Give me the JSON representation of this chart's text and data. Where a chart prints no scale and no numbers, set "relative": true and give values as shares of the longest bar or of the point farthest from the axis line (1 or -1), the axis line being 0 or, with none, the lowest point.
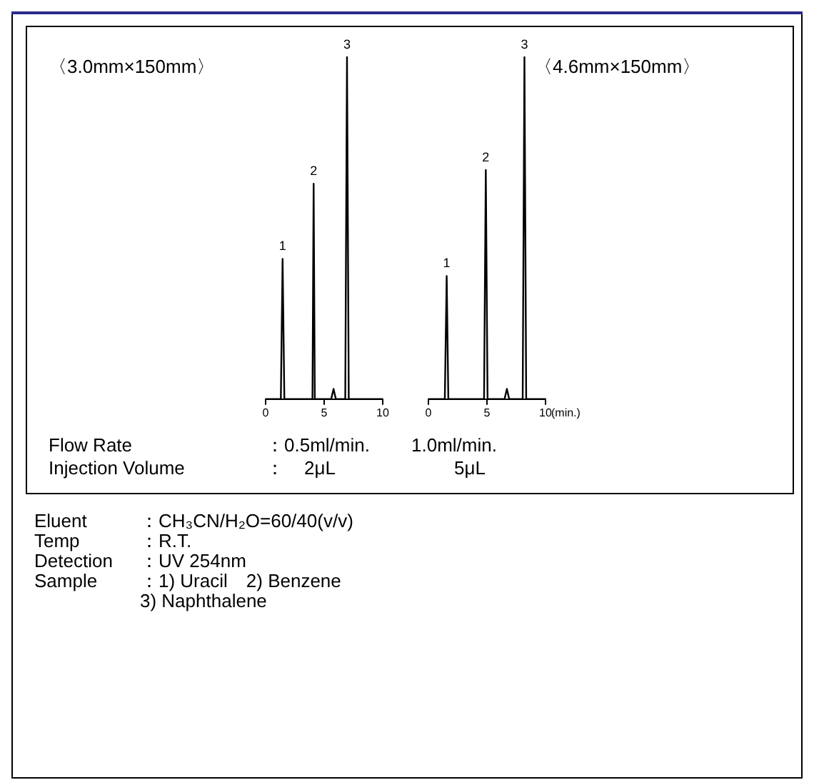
{
  "chart_data": [
    {
      "type": "line",
      "title": "〈3.0mm×150mm〉",
      "relative": true,
      "x": [
        0,
        1.3,
        1.45,
        1.6,
        4.0,
        4.1,
        4.2,
        5.6,
        5.8,
        6.0,
        6.8,
        6.95,
        7.1,
        10
      ],
      "xlim": [
        0,
        10
      ],
      "xticks": [
        0,
        5,
        10
      ],
      "series": [
        {
          "color": "#000000",
          "values": [
            0,
            0,
            0.41,
            0,
            0,
            0.63,
            0,
            0,
            0.03,
            0,
            0,
            1,
            0,
            0
          ]
        }
      ],
      "annotations": [
        {
          "text": "1",
          "x": 1.45,
          "y": 0.41
        },
        {
          "text": "2",
          "x": 4.1,
          "y": 0.63
        },
        {
          "text": "3",
          "x": 6.95,
          "y": 1
        }
      ]
    },
    {
      "type": "line",
      "title": "〈4.6mm×150mm〉",
      "xlabel": "(min.)",
      "relative": true,
      "x": [
        0,
        1.4,
        1.56,
        1.7,
        4.75,
        4.9,
        5.05,
        6.5,
        6.7,
        6.9,
        8.05,
        8.2,
        8.35,
        10
      ],
      "xlim": [
        0,
        10
      ],
      "xticks": [
        0,
        5,
        10
      ],
      "series": [
        {
          "color": "#000000",
          "values": [
            0,
            0,
            0.36,
            0,
            0,
            0.67,
            0,
            0,
            0.03,
            0,
            0,
            1,
            0,
            0
          ]
        }
      ],
      "annotations": [
        {
          "text": "1",
          "x": 1.56,
          "y": 0.36
        },
        {
          "text": "2",
          "x": 4.9,
          "y": 0.67
        },
        {
          "text": "3",
          "x": 8.2,
          "y": 1
        }
      ]
    },
    {
      "type": "other",
      "annotations": [
        "Flow Rate",
        "：0.5ml/min.",
        "1.0ml/min.",
        "Injection Volume",
        "：",
        "2μL",
        "5μL",
        "Eluent",
        "：CH₃CN/H₂O=60/40(v/v)",
        "Temp",
        "：R.T.",
        "Detection",
        "：UV 254nm",
        "Sample",
        "：1) Uracil　2) Benzene",
        "3) Naphthalene"
      ]
    }
  ]
}
